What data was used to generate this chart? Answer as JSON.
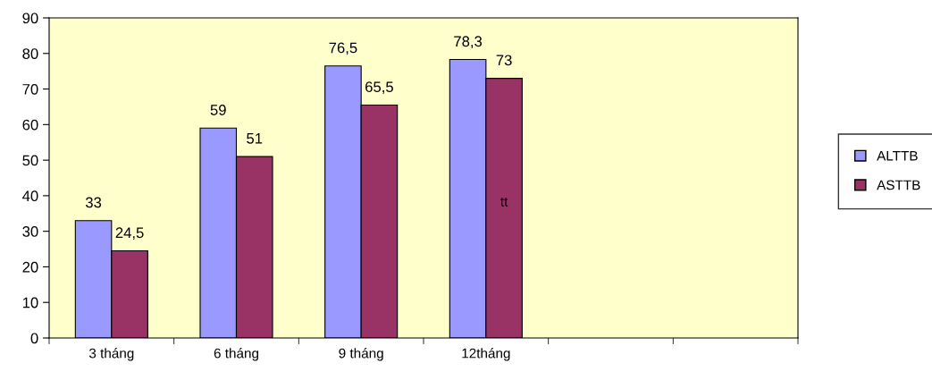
{
  "chart_data": {
    "type": "bar",
    "categories": [
      "3 tháng",
      "6 tháng",
      "9 tháng",
      "12tháng",
      null,
      null
    ],
    "series": [
      {
        "name": "ALTTB",
        "color": "#9999ff",
        "values": [
          33,
          59,
          76.5,
          78.3,
          null,
          null
        ],
        "value_labels": [
          "33",
          "59",
          "76,5",
          "78,3",
          null,
          null
        ]
      },
      {
        "name": "ASTTB",
        "color": "#993366",
        "values": [
          24.5,
          51,
          65.5,
          73,
          null,
          null
        ],
        "value_labels": [
          "24,5",
          "51",
          "65,5",
          "73",
          null,
          null
        ]
      }
    ],
    "ylim": [
      0,
      90
    ],
    "yticks": [
      0,
      10,
      20,
      30,
      40,
      50,
      60,
      70,
      80,
      90
    ],
    "legend": "right",
    "annotations": [
      {
        "text": "tt",
        "x": "12tháng",
        "y": 38
      }
    ]
  }
}
